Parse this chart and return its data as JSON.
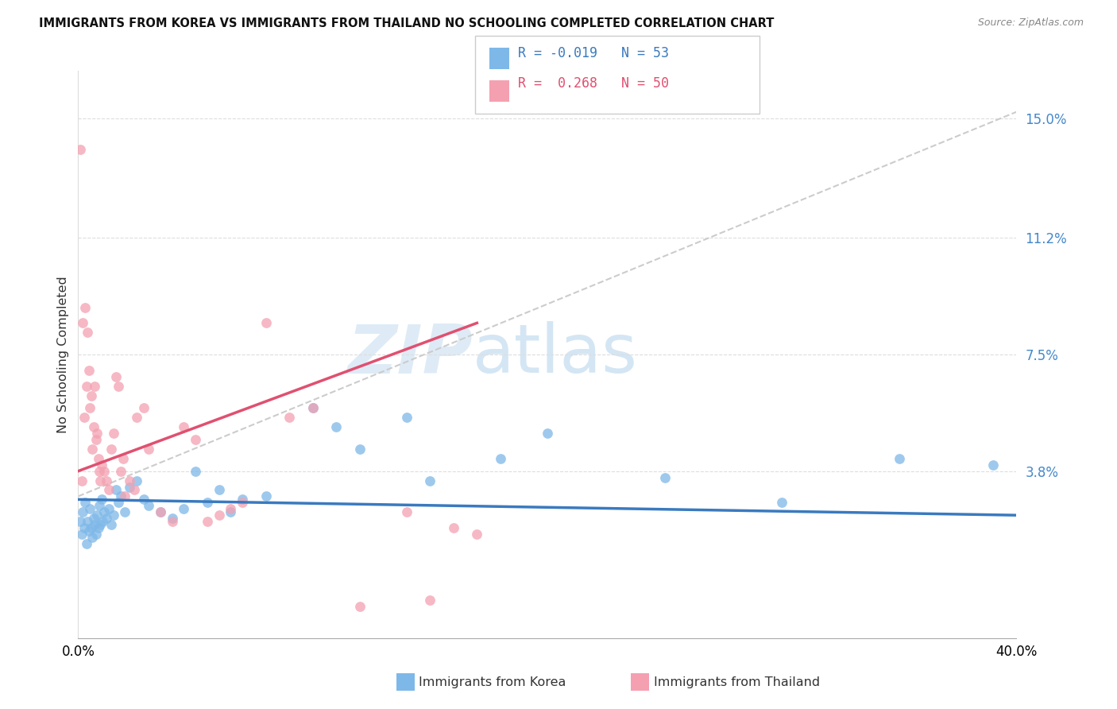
{
  "title": "IMMIGRANTS FROM KOREA VS IMMIGRANTS FROM THAILAND NO SCHOOLING COMPLETED CORRELATION CHART",
  "source": "Source: ZipAtlas.com",
  "ylabel": "No Schooling Completed",
  "ytick_labels": [
    "3.8%",
    "7.5%",
    "11.2%",
    "15.0%"
  ],
  "ytick_values": [
    3.8,
    7.5,
    11.2,
    15.0
  ],
  "xlim": [
    0.0,
    40.0
  ],
  "ylim": [
    -1.5,
    16.5
  ],
  "korea_color": "#7eb8e8",
  "korea_line_color": "#3a7abf",
  "thailand_color": "#f4a0b0",
  "thailand_line_color": "#e05070",
  "ref_line_color": "#cccccc",
  "korea_R": "-0.019",
  "korea_N": "53",
  "thailand_R": "0.268",
  "thailand_N": "50",
  "watermark_zip": "ZIP",
  "watermark_atlas": "atlas",
  "legend_label_korea": "Immigrants from Korea",
  "legend_label_thailand": "Immigrants from Thailand",
  "korea_x": [
    0.1,
    0.15,
    0.2,
    0.25,
    0.3,
    0.35,
    0.4,
    0.45,
    0.5,
    0.55,
    0.6,
    0.65,
    0.7,
    0.75,
    0.8,
    0.85,
    0.9,
    0.95,
    1.0,
    1.05,
    1.1,
    1.2,
    1.3,
    1.4,
    1.5,
    1.6,
    1.7,
    1.8,
    2.0,
    2.2,
    2.5,
    2.8,
    3.0,
    3.5,
    4.0,
    4.5,
    5.0,
    5.5,
    6.0,
    6.5,
    7.0,
    8.0,
    10.0,
    11.0,
    12.0,
    14.0,
    15.0,
    18.0,
    20.0,
    25.0,
    30.0,
    35.0,
    39.0
  ],
  "korea_y": [
    2.2,
    1.8,
    2.5,
    2.0,
    2.8,
    1.5,
    2.2,
    1.9,
    2.6,
    2.0,
    1.7,
    2.3,
    2.1,
    1.8,
    2.4,
    2.0,
    2.7,
    2.1,
    2.9,
    2.2,
    2.5,
    2.3,
    2.6,
    2.1,
    2.4,
    3.2,
    2.8,
    3.0,
    2.5,
    3.3,
    3.5,
    2.9,
    2.7,
    2.5,
    2.3,
    2.6,
    3.8,
    2.8,
    3.2,
    2.5,
    2.9,
    3.0,
    5.8,
    5.2,
    4.5,
    5.5,
    3.5,
    4.2,
    5.0,
    3.6,
    2.8,
    4.2,
    4.0
  ],
  "thailand_x": [
    0.1,
    0.15,
    0.2,
    0.25,
    0.3,
    0.35,
    0.4,
    0.45,
    0.5,
    0.55,
    0.6,
    0.65,
    0.7,
    0.75,
    0.8,
    0.85,
    0.9,
    0.95,
    1.0,
    1.1,
    1.2,
    1.3,
    1.4,
    1.5,
    1.6,
    1.7,
    1.8,
    1.9,
    2.0,
    2.2,
    2.4,
    2.5,
    2.8,
    3.0,
    3.5,
    4.0,
    4.5,
    5.0,
    5.5,
    6.0,
    6.5,
    7.0,
    8.0,
    9.0,
    10.0,
    12.0,
    14.0,
    15.0,
    16.0,
    17.0
  ],
  "thailand_y": [
    14.0,
    3.5,
    8.5,
    5.5,
    9.0,
    6.5,
    8.2,
    7.0,
    5.8,
    6.2,
    4.5,
    5.2,
    6.5,
    4.8,
    5.0,
    4.2,
    3.8,
    3.5,
    4.0,
    3.8,
    3.5,
    3.2,
    4.5,
    5.0,
    6.8,
    6.5,
    3.8,
    4.2,
    3.0,
    3.5,
    3.2,
    5.5,
    5.8,
    4.5,
    2.5,
    2.2,
    5.2,
    4.8,
    2.2,
    2.4,
    2.6,
    2.8,
    8.5,
    5.5,
    5.8,
    -0.5,
    2.5,
    -0.3,
    2.0,
    1.8
  ],
  "korea_trend_x": [
    0.0,
    40.0
  ],
  "korea_trend_y": [
    2.9,
    2.4
  ],
  "thailand_trend_x": [
    0.0,
    17.0
  ],
  "thailand_trend_y": [
    3.8,
    8.5
  ]
}
